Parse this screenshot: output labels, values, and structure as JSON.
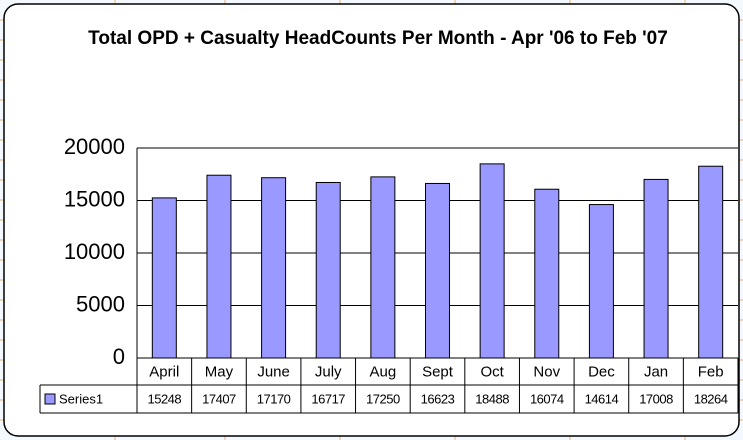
{
  "chart_data": {
    "type": "bar",
    "title": "Total OPD + Casualty HeadCounts Per Month - Apr '06 to Feb '07",
    "categories": [
      "April",
      "May",
      "June",
      "July",
      "Aug",
      "Sept",
      "Oct",
      "Nov",
      "Dec",
      "Jan",
      "Feb"
    ],
    "series": [
      {
        "name": "Series1",
        "color": "#9999ff",
        "values": [
          15248,
          17407,
          17170,
          16717,
          17250,
          16623,
          18488,
          16074,
          14614,
          17008,
          18264
        ]
      }
    ],
    "ylim": [
      0,
      20000
    ],
    "yticks": [
      0,
      5000,
      10000,
      15000,
      20000
    ],
    "grid": true,
    "data_table": true
  }
}
